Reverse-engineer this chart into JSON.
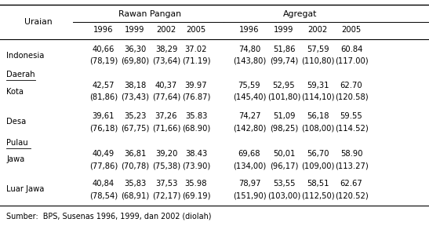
{
  "col_uraian_label": "Uraian",
  "col_group1_label": "Rawan Pangan",
  "col_group2_label": "Agregat",
  "years": [
    "1996",
    "1999",
    "2002",
    "2005"
  ],
  "rows": [
    {
      "label": "Indonesia",
      "underline": false,
      "section": false,
      "rawan_v1": [
        "40,66",
        "36,30",
        "38,29",
        "37.02"
      ],
      "rawan_v2": [
        "(78,19)",
        "(69,80)",
        "(73,64)",
        "(71.19)"
      ],
      "agregat_v1": [
        "74,80",
        "51,86",
        "57,59",
        "60.84"
      ],
      "agregat_v2": [
        "(143,80)",
        "(99,74)",
        "(110,80)",
        "(117.00)"
      ]
    },
    {
      "label": "Daerah",
      "underline": true,
      "section": true,
      "rawan_v1": [],
      "rawan_v2": [],
      "agregat_v1": [],
      "agregat_v2": []
    },
    {
      "label": "Kota",
      "underline": false,
      "section": false,
      "rawan_v1": [
        "42,57",
        "38,18",
        "40,37",
        "39.97"
      ],
      "rawan_v2": [
        "(81,86)",
        "(73,43)",
        "(77,64)",
        "(76.87)"
      ],
      "agregat_v1": [
        "75,59",
        "52,95",
        "59,31",
        "62.70"
      ],
      "agregat_v2": [
        "(145,40)",
        "(101,80)",
        "(114,10)",
        "(120.58)"
      ]
    },
    {
      "label": "Desa",
      "underline": false,
      "section": false,
      "rawan_v1": [
        "39,61",
        "35,23",
        "37,26",
        "35.83"
      ],
      "rawan_v2": [
        "(76,18)",
        "(67,75)",
        "(71,66)",
        "(68.90)"
      ],
      "agregat_v1": [
        "74,27",
        "51,09",
        "56,18",
        "59.55"
      ],
      "agregat_v2": [
        "(142,80)",
        "(98,25)",
        "(108,00)",
        "(114.52)"
      ]
    },
    {
      "label": "Pulau",
      "underline": true,
      "section": true,
      "rawan_v1": [],
      "rawan_v2": [],
      "agregat_v1": [],
      "agregat_v2": []
    },
    {
      "label": "Jawa",
      "underline": false,
      "section": false,
      "rawan_v1": [
        "40,49",
        "36,81",
        "39,20",
        "38.43"
      ],
      "rawan_v2": [
        "(77,86)",
        "(70,78)",
        "(75,38)",
        "(73.90)"
      ],
      "agregat_v1": [
        "69,68",
        "50,01",
        "56,70",
        "58.90"
      ],
      "agregat_v2": [
        "(134,00)",
        "(96,17)",
        "(109,00)",
        "(113.27)"
      ]
    },
    {
      "label": "Luar Jawa",
      "underline": false,
      "section": false,
      "rawan_v1": [
        "40,84",
        "35,83",
        "37,53",
        "35.98"
      ],
      "rawan_v2": [
        "(78,54)",
        "(68,91)",
        "(72,17)",
        "(69.19)"
      ],
      "agregat_v1": [
        "78,97",
        "53,55",
        "58,51",
        "62.67"
      ],
      "agregat_v2": [
        "(151,90)",
        "(103,00)",
        "(112,50)",
        "(120.52)"
      ]
    }
  ],
  "footnote": "Sumber:  BPS, Susenas 1996, 1999, dan 2002 (diolah)",
  "bg_color": "#ffffff",
  "text_color": "#000000",
  "fs": 7.2,
  "hfs": 7.8
}
